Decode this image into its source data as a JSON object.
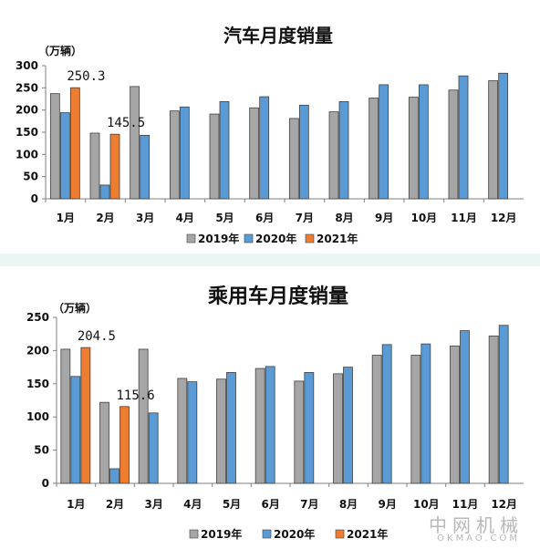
{
  "watermark": {
    "cn": "中网机械",
    "en": "OKMAO.COM"
  },
  "chart_data": [
    {
      "type": "bar",
      "title": "汽车月度销量",
      "ylabel": "（万辆）",
      "xlabel": "",
      "ylim": [
        0,
        300
      ],
      "yticks": [
        0,
        50,
        100,
        150,
        200,
        250,
        300
      ],
      "categories": [
        "1月",
        "2月",
        "3月",
        "4月",
        "5月",
        "6月",
        "7月",
        "8月",
        "9月",
        "10月",
        "11月",
        "12月"
      ],
      "series": [
        {
          "name": "2019年",
          "color": "#a6a6a6",
          "values": [
            237,
            148,
            253,
            198,
            191,
            205,
            181,
            196,
            227,
            229,
            245,
            266
          ]
        },
        {
          "name": "2020年",
          "color": "#5b9bd5",
          "values": [
            194,
            31,
            143,
            207,
            219,
            230,
            211,
            219,
            257,
            257,
            277,
            283
          ]
        },
        {
          "name": "2021年",
          "color": "#ed7d31",
          "values": [
            250.3,
            145.5,
            null,
            null,
            null,
            null,
            null,
            null,
            null,
            null,
            null,
            null
          ]
        }
      ],
      "data_labels": [
        {
          "text": "250.3",
          "category": "1月",
          "series": "2021年"
        },
        {
          "text": "145.5",
          "category": "2月",
          "series": "2021年"
        }
      ],
      "legend": "bottom",
      "grid": false
    },
    {
      "type": "bar",
      "title": "乘用车月度销量",
      "ylabel": "（万辆）",
      "xlabel": "",
      "ylim": [
        0,
        250
      ],
      "yticks": [
        0,
        50,
        100,
        150,
        200,
        250
      ],
      "categories": [
        "1月",
        "2月",
        "3月",
        "4月",
        "5月",
        "6月",
        "7月",
        "8月",
        "9月",
        "10月",
        "11月",
        "12月"
      ],
      "series": [
        {
          "name": "2019年",
          "color": "#a6a6a6",
          "values": [
            202,
            122,
            202,
            158,
            157,
            173,
            154,
            165,
            193,
            193,
            207,
            222
          ]
        },
        {
          "name": "2020年",
          "color": "#5b9bd5",
          "values": [
            161,
            22,
            106,
            153,
            167,
            176,
            167,
            175,
            209,
            210,
            230,
            238
          ]
        },
        {
          "name": "2021年",
          "color": "#ed7d31",
          "values": [
            204.5,
            115.6,
            null,
            null,
            null,
            null,
            null,
            null,
            null,
            null,
            null,
            null
          ]
        }
      ],
      "data_labels": [
        {
          "text": "204.5",
          "category": "1月",
          "series": "2021年"
        },
        {
          "text": "115.6",
          "category": "2月",
          "series": "2021年"
        }
      ],
      "legend": "bottom",
      "grid": false
    }
  ]
}
